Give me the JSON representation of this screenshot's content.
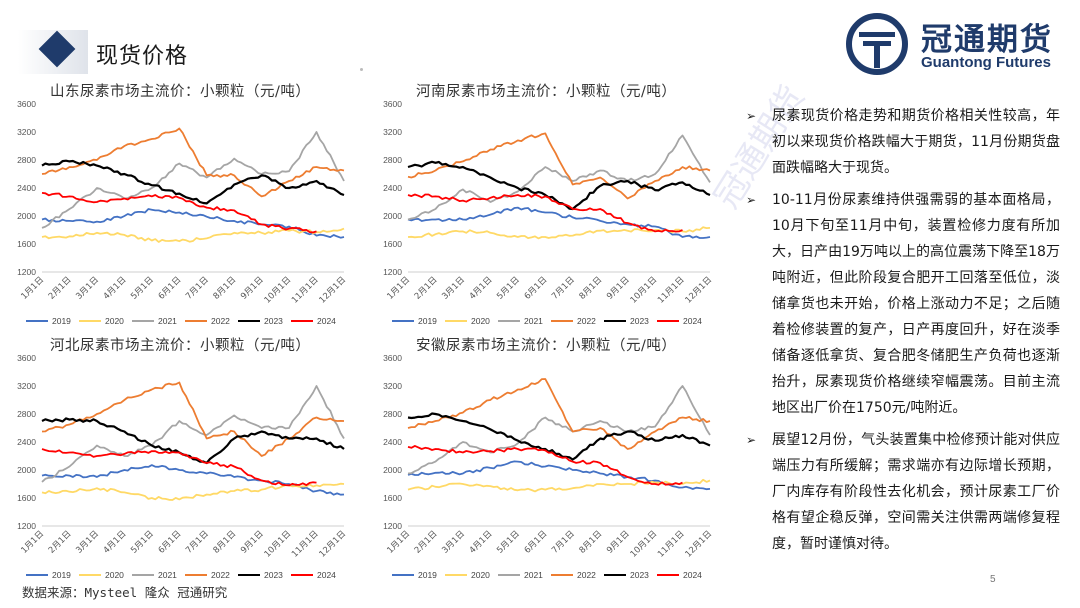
{
  "header": {
    "title": "现货价格",
    "logo_cn": "冠通期货",
    "logo_en": "Guantong Futures"
  },
  "watermark": "冠通期货",
  "colors": {
    "brand": "#1f3b6b",
    "2019": "#4472c4",
    "2020": "#ffd966",
    "2021": "#a5a5a5",
    "2022": "#ed7d31",
    "2023": "#000000",
    "2024": "#ff0000"
  },
  "chart_data": [
    {
      "type": "line",
      "title": "山东尿素市场主流价：小颗粒（元/吨）",
      "ylim": [
        1200,
        3600
      ],
      "yticks": [
        "1200",
        "1600",
        "2000",
        "2400",
        "2800",
        "3200",
        "3600"
      ],
      "categories": [
        "1月1日",
        "2月1日",
        "3月1日",
        "4月1日",
        "5月1日",
        "6月1日",
        "7月1日",
        "8月1日",
        "9月1日",
        "10月1日",
        "11月1日",
        "12月1日"
      ],
      "legend_position": "bottom",
      "grid": false,
      "series": [
        {
          "name": "2019",
          "values": [
            1950,
            1930,
            1920,
            2000,
            2090,
            2050,
            1990,
            1930,
            1880,
            1850,
            1720,
            1700
          ]
        },
        {
          "name": "2020",
          "values": [
            1700,
            1710,
            1760,
            1730,
            1650,
            1640,
            1680,
            1760,
            1760,
            1790,
            1770,
            1820
          ]
        },
        {
          "name": "2021",
          "values": [
            1830,
            2100,
            2400,
            2250,
            2400,
            2750,
            2550,
            2820,
            2600,
            2640,
            3200,
            2500
          ]
        },
        {
          "name": "2022",
          "values": [
            2600,
            2700,
            2800,
            3000,
            3100,
            3250,
            2580,
            2580,
            2280,
            2500,
            2700,
            2650
          ]
        },
        {
          "name": "2023",
          "values": [
            2720,
            2780,
            2720,
            2600,
            2440,
            2320,
            2180,
            2450,
            2580,
            2400,
            2500,
            2300
          ]
        },
        {
          "name": "2024",
          "values": [
            2330,
            2280,
            2200,
            2250,
            2280,
            2260,
            2120,
            2080,
            1880,
            1820,
            1780,
            null
          ]
        }
      ]
    },
    {
      "type": "line",
      "title": "河南尿素市场主流价：小颗粒（元/吨）",
      "ylim": [
        1200,
        3600
      ],
      "yticks": [
        "1200",
        "1600",
        "2000",
        "2400",
        "2800",
        "3200",
        "3600"
      ],
      "categories": [
        "1月1日",
        "2月1日",
        "3月1日",
        "4月1日",
        "5月1日",
        "6月1日",
        "7月1日",
        "8月1日",
        "9月1日",
        "10月1日",
        "11月1日",
        "12月1日"
      ],
      "legend_position": "bottom",
      "grid": false,
      "series": [
        {
          "name": "2019",
          "values": [
            1950,
            1950,
            1950,
            2020,
            2120,
            2050,
            1980,
            1930,
            1880,
            1850,
            1700,
            1700
          ]
        },
        {
          "name": "2020",
          "values": [
            1700,
            1740,
            1780,
            1760,
            1700,
            1700,
            1720,
            1790,
            1790,
            1800,
            1780,
            1830
          ]
        },
        {
          "name": "2021",
          "values": [
            1950,
            2100,
            2380,
            2200,
            2350,
            2700,
            2500,
            2650,
            2500,
            2600,
            3150,
            2480
          ]
        },
        {
          "name": "2022",
          "values": [
            2560,
            2650,
            2780,
            2950,
            3080,
            3180,
            2450,
            2550,
            2250,
            2500,
            2700,
            2650
          ]
        },
        {
          "name": "2023",
          "values": [
            2700,
            2760,
            2700,
            2550,
            2400,
            2300,
            2100,
            2430,
            2500,
            2370,
            2480,
            2300
          ]
        },
        {
          "name": "2024",
          "values": [
            2300,
            2280,
            2220,
            2260,
            2300,
            2280,
            2100,
            2100,
            1900,
            1780,
            1800,
            null
          ]
        }
      ]
    },
    {
      "type": "line",
      "title": "河北尿素市场主流价：小颗粒（元/吨）",
      "ylim": [
        1200,
        3600
      ],
      "yticks": [
        "1200",
        "1600",
        "2000",
        "2400",
        "2800",
        "3200",
        "3600"
      ],
      "categories": [
        "1月1日",
        "2月1日",
        "3月1日",
        "4月1日",
        "5月1日",
        "6月1日",
        "7月1日",
        "8月1日",
        "9月1日",
        "10月1日",
        "11月1日",
        "12月1日"
      ],
      "legend_position": "bottom",
      "grid": false,
      "series": [
        {
          "name": "2019",
          "values": [
            1920,
            1920,
            1900,
            2000,
            2070,
            2000,
            1950,
            1900,
            1850,
            1800,
            1700,
            1650
          ]
        },
        {
          "name": "2020",
          "values": [
            1680,
            1690,
            1740,
            1680,
            1600,
            1580,
            1650,
            1700,
            1720,
            1780,
            1780,
            1800
          ]
        },
        {
          "name": "2021",
          "values": [
            1830,
            2050,
            2350,
            2200,
            2350,
            2700,
            2500,
            2780,
            2600,
            2600,
            3200,
            2450
          ]
        },
        {
          "name": "2022",
          "values": [
            2550,
            2650,
            2800,
            3000,
            3150,
            3250,
            2450,
            2550,
            2200,
            2450,
            2750,
            2700
          ]
        },
        {
          "name": "2023",
          "values": [
            2700,
            2720,
            2700,
            2550,
            2350,
            2250,
            2100,
            2450,
            2550,
            2450,
            2450,
            2300
          ]
        },
        {
          "name": "2024",
          "values": [
            2300,
            2250,
            2200,
            2230,
            2270,
            2250,
            2100,
            2050,
            1850,
            1780,
            1820,
            null
          ]
        }
      ]
    },
    {
      "type": "line",
      "title": "安徽尿素市场主流价：小颗粒（元/吨）",
      "ylim": [
        1200,
        3600
      ],
      "yticks": [
        "1200",
        "1600",
        "2000",
        "2400",
        "2800",
        "3200",
        "3600"
      ],
      "categories": [
        "1月1日",
        "2月1日",
        "3月1日",
        "4月1日",
        "5月1日",
        "6月1日",
        "7月1日",
        "8月1日",
        "9月1日",
        "10月1日",
        "11月1日",
        "12月1日"
      ],
      "legend_position": "bottom",
      "grid": false,
      "series": [
        {
          "name": "2019",
          "values": [
            1930,
            1960,
            1950,
            2030,
            2120,
            2050,
            2000,
            1950,
            1900,
            1850,
            1750,
            1730
          ]
        },
        {
          "name": "2020",
          "values": [
            1720,
            1760,
            1800,
            1770,
            1710,
            1720,
            1740,
            1800,
            1800,
            1820,
            1800,
            1850
          ]
        },
        {
          "name": "2021",
          "values": [
            1950,
            2120,
            2400,
            2250,
            2380,
            2750,
            2550,
            2700,
            2550,
            2620,
            3200,
            2500
          ]
        },
        {
          "name": "2022",
          "values": [
            2600,
            2700,
            2820,
            3000,
            3150,
            3300,
            2550,
            2600,
            2300,
            2550,
            2750,
            2700
          ]
        },
        {
          "name": "2023",
          "values": [
            2750,
            2800,
            2700,
            2580,
            2420,
            2300,
            2150,
            2450,
            2550,
            2420,
            2500,
            2350
          ]
        },
        {
          "name": "2024",
          "values": [
            2330,
            2300,
            2250,
            2270,
            2300,
            2280,
            2120,
            2100,
            1900,
            1800,
            1820,
            null
          ]
        }
      ]
    }
  ],
  "bullets": [
    "尿素现货价格走势和期货价格相关性较高，年初以来现货价格跌幅大于期货，11月份期货盘面跌幅略大于现货。",
    "10-11月份尿素维持供强需弱的基本面格局，10月下旬至11月中旬，装置检修力度有所加大，日产由19万吨以上的高位震荡下降至18万吨附近，但此阶段复合肥开工回落至低位，淡储拿货也未开始，价格上涨动力不足；之后随着检修装置的复产，日产再度回升，好在淡季储备逐低拿货、复合肥冬储肥生产负荷也逐渐抬升，尿素现货价格继续窄幅震荡。目前主流地区出厂价在1750元/吨附近。",
    "展望12月份，气头装置集中检修预计能对供应端压力有所缓解；需求端亦有边际增长预期，厂内库存有阶段性去化机会，预计尿素工厂价格有望企稳反弹，空间需关注供需两端修复程度，暂时谨慎对待。"
  ],
  "footer": {
    "source": "数据来源：Mysteel 隆众 冠通研究",
    "page": "5"
  }
}
